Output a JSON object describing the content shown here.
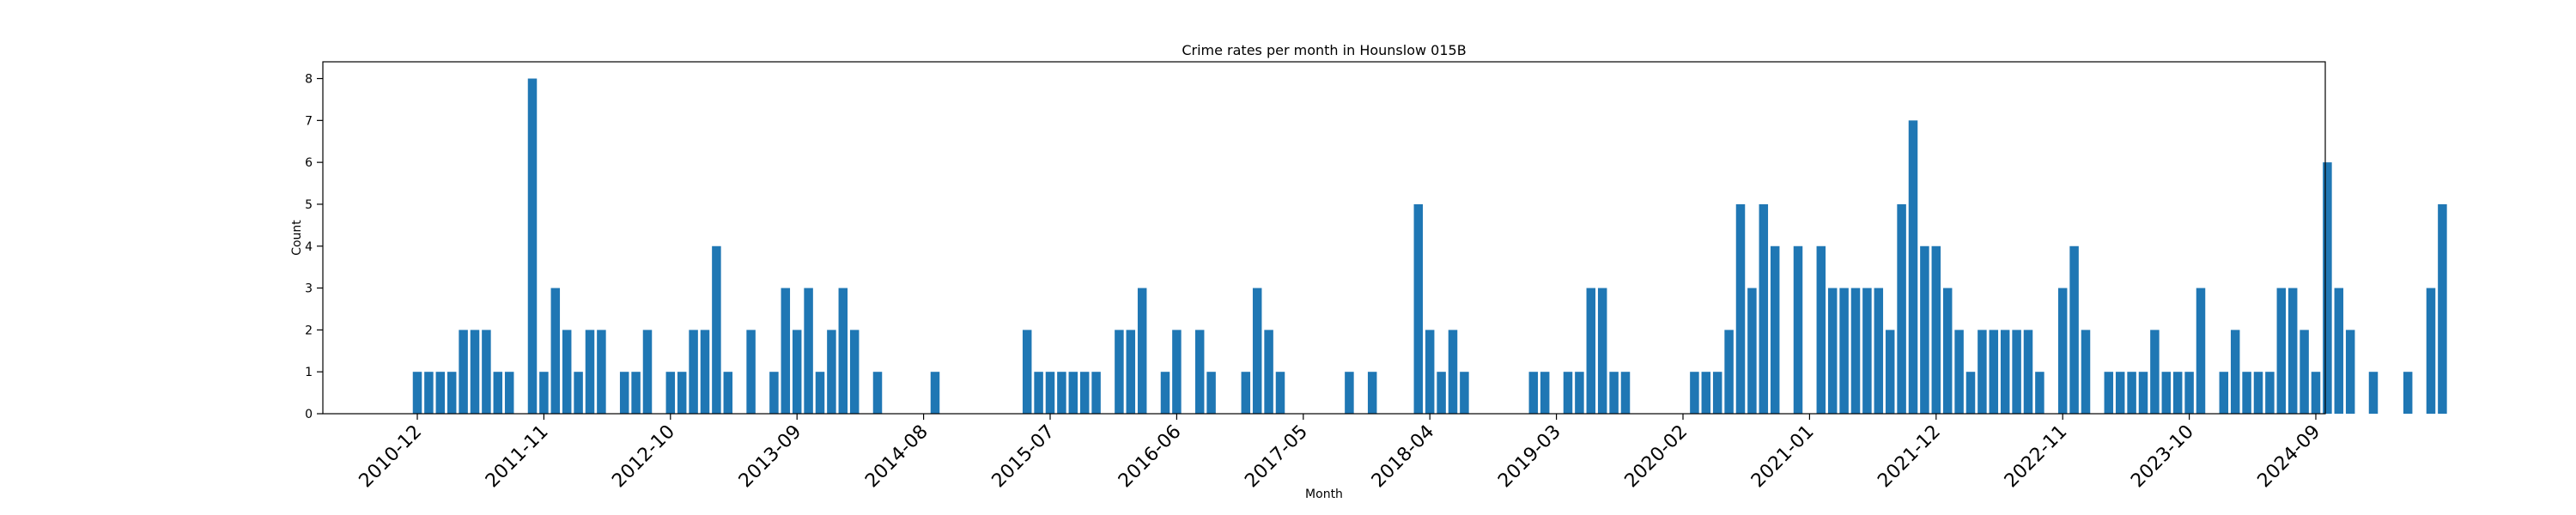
{
  "chart_data": {
    "type": "bar",
    "title": "Crime rates per month in Hounslow 015B",
    "xlabel": "Month",
    "ylabel": "Count",
    "ylim": [
      0,
      8.4
    ],
    "yticks": [
      0,
      1,
      2,
      3,
      4,
      5,
      6,
      7,
      8
    ],
    "xtick_labels": [
      "2010-12",
      "2011-11",
      "2012-10",
      "2013-09",
      "2014-08",
      "2015-07",
      "2016-06",
      "2017-05",
      "2018-04",
      "2019-03",
      "2020-02",
      "2021-01",
      "2021-12",
      "2022-11",
      "2023-10",
      "2024-09"
    ],
    "start_month": "2010-12",
    "values": [
      1,
      1,
      1,
      1,
      2,
      2,
      2,
      1,
      1,
      0,
      8,
      1,
      3,
      2,
      1,
      2,
      2,
      0,
      1,
      1,
      2,
      0,
      1,
      1,
      2,
      2,
      4,
      1,
      0,
      2,
      0,
      1,
      3,
      2,
      3,
      1,
      2,
      3,
      2,
      0,
      1,
      0,
      0,
      0,
      0,
      1,
      0,
      0,
      0,
      0,
      0,
      0,
      0,
      2,
      1,
      1,
      1,
      1,
      1,
      1,
      0,
      2,
      2,
      3,
      0,
      1,
      2,
      0,
      2,
      1,
      0,
      0,
      1,
      3,
      2,
      1,
      0,
      0,
      0,
      0,
      0,
      1,
      0,
      1,
      0,
      0,
      0,
      5,
      2,
      1,
      2,
      1,
      0,
      0,
      0,
      0,
      0,
      1,
      1,
      0,
      1,
      1,
      3,
      3,
      1,
      1,
      0,
      0,
      0,
      0,
      0,
      1,
      1,
      1,
      2,
      5,
      3,
      5,
      4,
      0,
      4,
      0,
      4,
      3,
      3,
      3,
      3,
      3,
      2,
      5,
      7,
      4,
      4,
      3,
      2,
      1,
      2,
      2,
      2,
      2,
      2,
      1,
      0,
      3,
      4,
      2,
      0,
      1,
      1,
      1,
      1,
      2,
      1,
      1,
      1,
      3,
      0,
      1,
      2,
      1,
      1,
      1,
      3,
      3,
      2,
      1,
      6,
      3,
      2,
      0,
      1,
      0,
      0,
      1,
      0,
      3,
      5
    ],
    "bar_color": "#1f77b4",
    "grid": false,
    "legend": false
  }
}
